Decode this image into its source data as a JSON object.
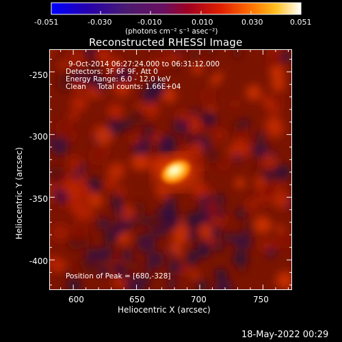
{
  "colorbar": {
    "ticks": [
      "-0.051",
      "-0.030",
      "-0.010",
      "0.010",
      "0.030",
      "0.051"
    ],
    "units": "(photons cm⁻² s⁻¹ asec⁻²)",
    "palette": [
      "#0000ff",
      "#3a00a8",
      "#6e1a80",
      "#a00030",
      "#d02000",
      "#ff6000",
      "#ffb000",
      "#ffff60",
      "#ffffff"
    ]
  },
  "plot": {
    "title": "Reconstructed RHESSI Image",
    "info_lines": [
      "9-Oct-2014 06:27:24.000 to 06:31:12.000",
      "Detectors: 3F 6F 9F, Att 0",
      "Energy Range: 6.0 - 12.0 keV",
      "Clean     Total counts: 1.66E+04"
    ],
    "peak_label": "Position of Peak = [680,-328]",
    "xlabel": "Heliocentric X (arcsec)",
    "ylabel": "Heliocentric Y (arcsec)",
    "xticks": [
      "600",
      "650",
      "700",
      "750"
    ],
    "yticks": [
      "-250",
      "-300",
      "-350",
      "-400"
    ],
    "xrange": [
      581,
      773
    ],
    "yrange": [
      -232,
      -424
    ],
    "peak": [
      680,
      -328
    ]
  },
  "footer": {
    "timestamp": "18-May-2022 00:29"
  }
}
